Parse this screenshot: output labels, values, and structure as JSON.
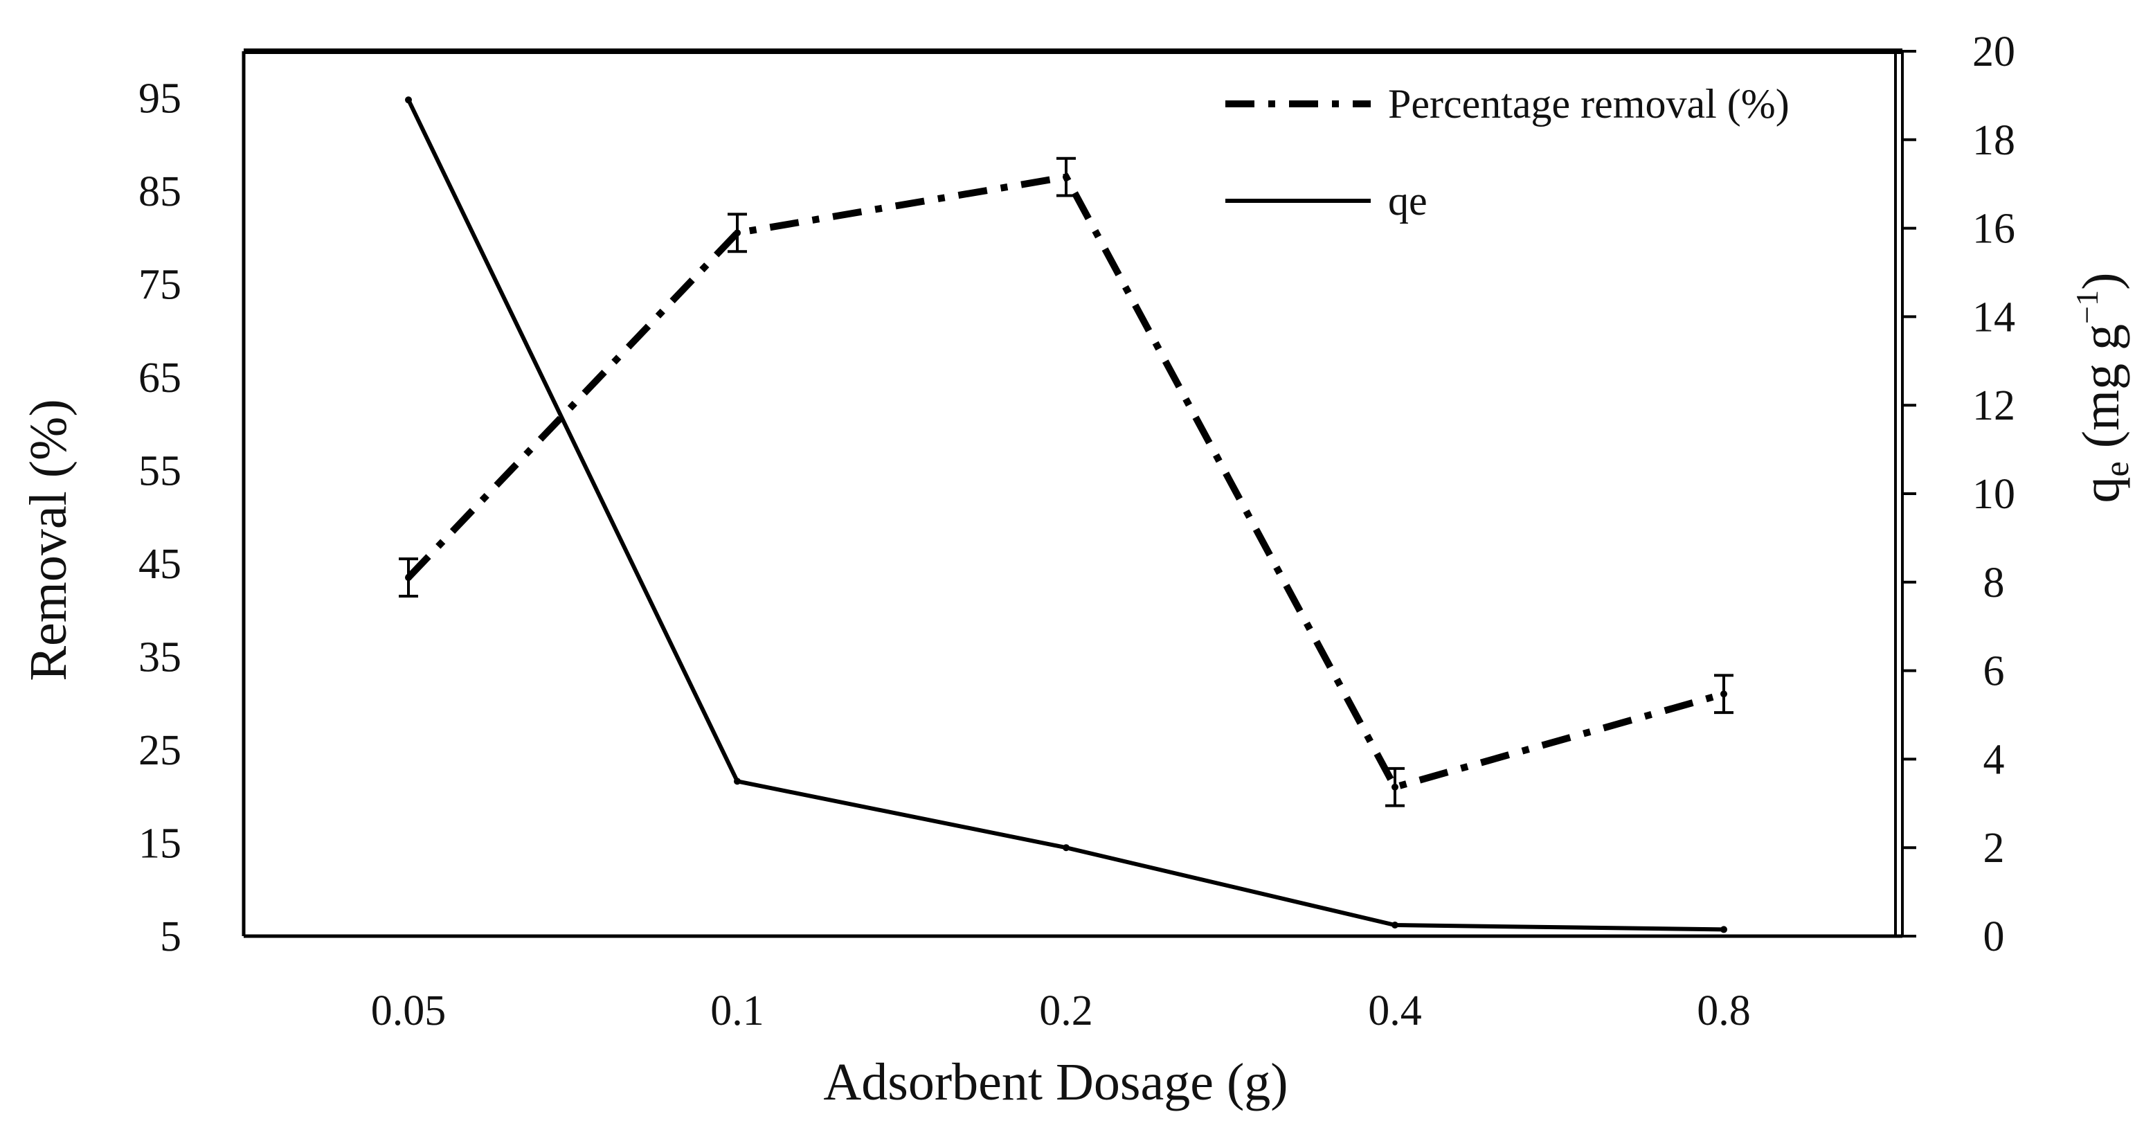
{
  "chart_data": {
    "type": "line",
    "xlabel": "Adsorbent Dosage (g)",
    "ylabel_left": "Removal (%)",
    "ylabel_right": {
      "main": "q",
      "sub": "e",
      "unit_open": " (mg g",
      "sup": "−1",
      "unit_close": ")"
    },
    "categories": [
      "0.05",
      "0.1",
      "0.2",
      "0.4",
      "0.8"
    ],
    "y_left": {
      "range": [
        5,
        100
      ],
      "ticks": [
        "5",
        "15",
        "25",
        "35",
        "45",
        "55",
        "65",
        "75",
        "85",
        "95"
      ]
    },
    "y_right": {
      "range": [
        0,
        20
      ],
      "ticks": [
        "0",
        "2",
        "4",
        "6",
        "8",
        "10",
        "12",
        "14",
        "16",
        "18",
        "20"
      ]
    },
    "series": [
      {
        "name": "Percentage removal (%)",
        "axis": "left",
        "style": "dash-dot",
        "values": [
          43.5,
          80.5,
          86.5,
          21,
          31
        ],
        "error": [
          2,
          2,
          2,
          2,
          2
        ]
      },
      {
        "name": "qe",
        "axis": "right",
        "style": "solid",
        "values": [
          18.9,
          3.5,
          2.0,
          0.25,
          0.15
        ]
      }
    ],
    "legend_position": "top-right",
    "colors": {
      "line": "#000000",
      "text": "#111111"
    }
  }
}
